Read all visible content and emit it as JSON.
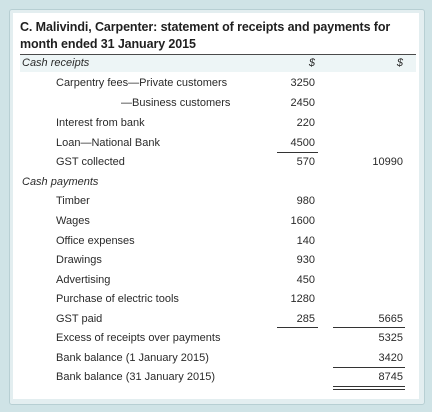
{
  "title": "C. Malivindi, Carpenter: statement of receipts and payments for month ended 31 January 2015",
  "columns": {
    "c1": "$",
    "c2": "$"
  },
  "receipts_heading": "Cash receipts",
  "receipts": [
    {
      "label": "Carpentry fees—Private customers",
      "c1": "3250",
      "c2": ""
    },
    {
      "label": "—Business customers",
      "c1": "2450",
      "c2": ""
    },
    {
      "label": "Interest from bank",
      "c1": "220",
      "c2": ""
    },
    {
      "label": "Loan—National Bank",
      "c1": "4500",
      "c2": ""
    },
    {
      "label": "GST collected",
      "c1": "570",
      "c2": "10990"
    }
  ],
  "payments_heading": "Cash payments",
  "payments": [
    {
      "label": "Timber",
      "c1": "980",
      "c2": ""
    },
    {
      "label": "Wages",
      "c1": "1600",
      "c2": ""
    },
    {
      "label": "Office expenses",
      "c1": "140",
      "c2": ""
    },
    {
      "label": "Drawings",
      "c1": "930",
      "c2": ""
    },
    {
      "label": "Advertising",
      "c1": "450",
      "c2": ""
    },
    {
      "label": "Purchase of electric tools",
      "c1": "1280",
      "c2": ""
    },
    {
      "label": "GST paid",
      "c1": "285",
      "c2": "5665"
    }
  ],
  "summary": [
    {
      "label": "Excess of receipts over payments",
      "c1": "",
      "c2": "5325"
    },
    {
      "label": "Bank balance (1 January 2015)",
      "c1": "",
      "c2": "3420"
    },
    {
      "label": "Bank balance (31 January 2015)",
      "c1": "",
      "c2": "8745"
    }
  ]
}
